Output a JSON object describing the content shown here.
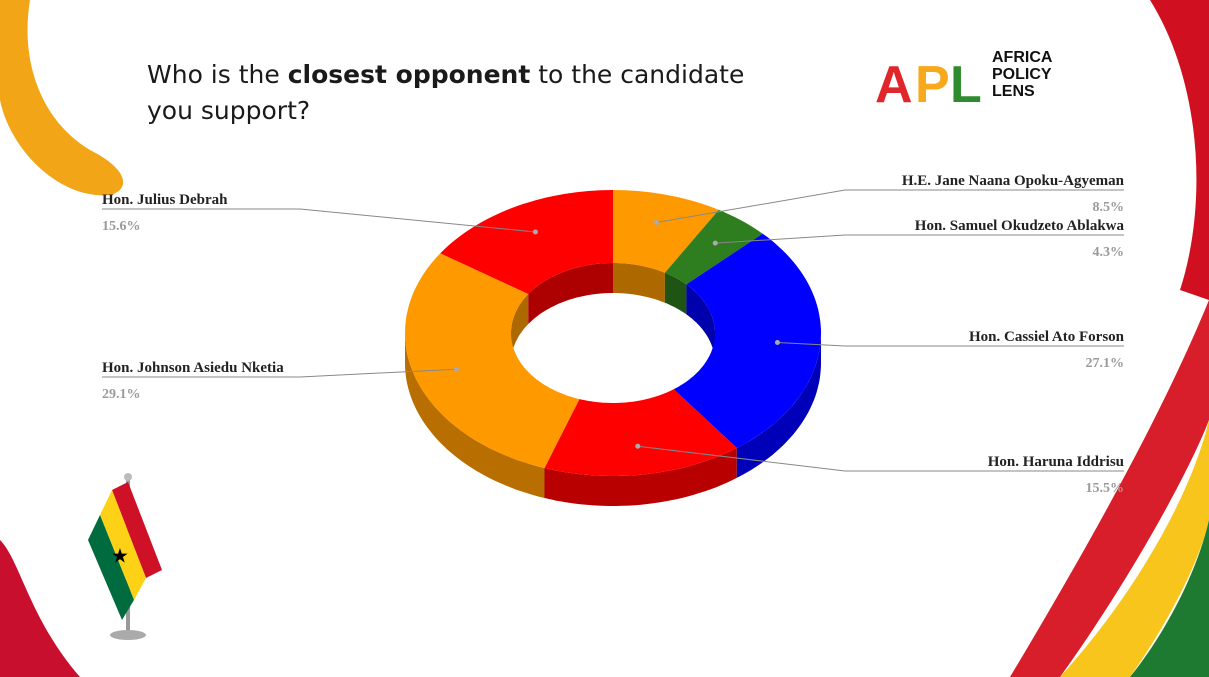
{
  "header": {
    "title": [
      "Who is the ",
      "closest opponent",
      " to the candidate",
      "you support?"
    ]
  },
  "logo": {
    "mark": [
      "A",
      "P",
      "L"
    ],
    "name": [
      "AFRICA",
      "POLICY",
      "LENS"
    ]
  },
  "chart_data": {
    "type": "donut",
    "categories": [
      "H.E. Jane Naana Opoku-Agyeman",
      "Hon.  Samuel Okudzeto Ablakwa",
      "Hon. Cassiel Ato Forson",
      "Hon. Haruna Iddrisu",
      "Hon. Johnson Asiedu Nketia",
      "Hon. Julius Debrah"
    ],
    "values": [
      8.5,
      4.3,
      27.1,
      15.5,
      29.1,
      15.6
    ],
    "value_labels": [
      "8.5%",
      "4.3%",
      "27.1%",
      "15.5%",
      "29.1%",
      "15.6%"
    ],
    "colors": [
      "#ff9900",
      "#2e7d1e",
      "#0000ff",
      "#ff0000",
      "#ff9900",
      "#ff0000"
    ]
  }
}
